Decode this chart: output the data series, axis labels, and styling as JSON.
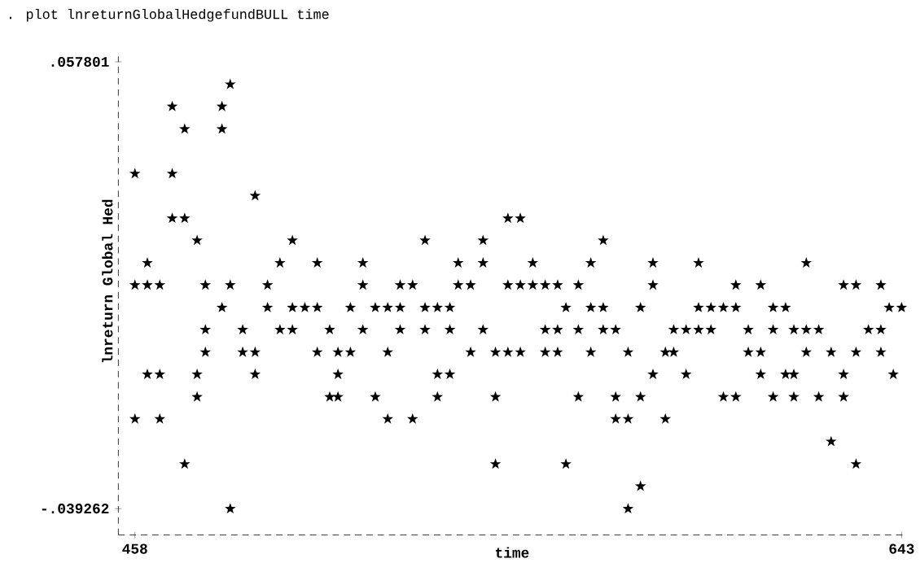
{
  "chart_data": {
    "type": "scatter",
    "title": ". plot lnreturnGlobalHedgefundBULL time",
    "xlabel": "time",
    "ylabel": "lnreturn Global Hed",
    "xlim": [
      454,
      644
    ],
    "ylim": [
      -0.045,
      0.059
    ],
    "xticks": [
      458,
      643
    ],
    "yticks": [
      {
        "value": 0.057801,
        "label": ".057801"
      },
      {
        "value": -0.039262,
        "label": "-.039262"
      }
    ],
    "marker": "star",
    "series": [
      {
        "color": "#000000",
        "x": [
          481,
          467,
          479,
          470,
          479,
          458,
          467,
          487,
          467,
          470,
          548,
          551,
          473,
          496,
          528,
          542,
          571,
          461,
          493,
          502,
          513,
          536,
          542,
          554,
          568,
          583,
          594,
          620,
          458,
          461,
          464,
          475,
          481,
          490,
          513,
          522,
          525,
          536,
          539,
          548,
          551,
          554,
          557,
          560,
          565,
          583,
          603,
          609,
          629,
          632,
          638,
          479,
          490,
          496,
          499,
          502,
          510,
          516,
          519,
          522,
          528,
          531,
          534,
          562,
          568,
          571,
          580,
          594,
          597,
          600,
          603,
          612,
          615,
          640,
          643,
          475,
          484,
          493,
          496,
          505,
          513,
          522,
          528,
          534,
          542,
          557,
          560,
          565,
          571,
          574,
          588,
          591,
          594,
          597,
          606,
          612,
          617,
          620,
          623,
          635,
          638,
          475,
          484,
          487,
          502,
          507,
          510,
          519,
          539,
          545,
          548,
          551,
          557,
          560,
          568,
          577,
          586,
          588,
          606,
          609,
          620,
          626,
          632,
          638,
          461,
          464,
          473,
          487,
          507,
          531,
          534,
          583,
          591,
          609,
          615,
          617,
          629,
          641,
          473,
          505,
          507,
          516,
          531,
          545,
          565,
          574,
          580,
          600,
          603,
          612,
          617,
          623,
          629,
          458,
          464,
          519,
          525,
          574,
          577,
          586,
          626,
          470,
          545,
          562,
          632,
          580,
          481,
          577
        ],
        "values": [
          0.0529,
          0.0481,
          0.0481,
          0.0432,
          0.0432,
          0.0335,
          0.0335,
          0.0287,
          0.0238,
          0.0238,
          0.0238,
          0.0238,
          0.019,
          0.019,
          0.019,
          0.019,
          0.019,
          0.0141,
          0.0141,
          0.0141,
          0.0141,
          0.0141,
          0.0141,
          0.0141,
          0.0141,
          0.0141,
          0.0141,
          0.0141,
          0.0093,
          0.0093,
          0.0093,
          0.0093,
          0.0093,
          0.0093,
          0.0093,
          0.0093,
          0.0093,
          0.0093,
          0.0093,
          0.0093,
          0.0093,
          0.0093,
          0.0093,
          0.0093,
          0.0093,
          0.0093,
          0.0093,
          0.0093,
          0.0093,
          0.0093,
          0.0093,
          0.0044,
          0.0044,
          0.0044,
          0.0044,
          0.0044,
          0.0044,
          0.0044,
          0.0044,
          0.0044,
          0.0044,
          0.0044,
          0.0044,
          0.0044,
          0.0044,
          0.0044,
          0.0044,
          0.0044,
          0.0044,
          0.0044,
          0.0044,
          0.0044,
          0.0044,
          0.0044,
          0.0044,
          -0.0004,
          -0.0004,
          -0.0004,
          -0.0004,
          -0.0004,
          -0.0004,
          -0.0004,
          -0.0004,
          -0.0004,
          -0.0004,
          -0.0004,
          -0.0004,
          -0.0004,
          -0.0004,
          -0.0004,
          -0.0004,
          -0.0004,
          -0.0004,
          -0.0004,
          -0.0004,
          -0.0004,
          -0.0004,
          -0.0004,
          -0.0004,
          -0.0004,
          -0.0004,
          -0.0053,
          -0.0053,
          -0.0053,
          -0.0053,
          -0.0053,
          -0.0053,
          -0.0053,
          -0.0053,
          -0.0053,
          -0.0053,
          -0.0053,
          -0.0053,
          -0.0053,
          -0.0053,
          -0.0053,
          -0.0053,
          -0.0053,
          -0.0053,
          -0.0053,
          -0.0053,
          -0.0053,
          -0.0053,
          -0.0053,
          -0.0101,
          -0.0101,
          -0.0101,
          -0.0101,
          -0.0101,
          -0.0101,
          -0.0101,
          -0.0101,
          -0.0101,
          -0.0101,
          -0.0101,
          -0.0101,
          -0.0101,
          -0.0101,
          -0.015,
          -0.015,
          -0.015,
          -0.015,
          -0.015,
          -0.015,
          -0.015,
          -0.015,
          -0.015,
          -0.015,
          -0.015,
          -0.015,
          -0.015,
          -0.015,
          -0.015,
          -0.0198,
          -0.0198,
          -0.0198,
          -0.0198,
          -0.0198,
          -0.0198,
          -0.0198,
          -0.0247,
          -0.0296,
          -0.0296,
          -0.0296,
          -0.0296,
          -0.0344,
          -0.0393,
          -0.0393
        ]
      }
    ]
  }
}
